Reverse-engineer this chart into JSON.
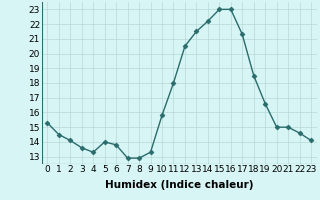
{
  "x": [
    0,
    1,
    2,
    3,
    4,
    5,
    6,
    7,
    8,
    9,
    10,
    11,
    12,
    13,
    14,
    15,
    16,
    17,
    18,
    19,
    20,
    21,
    22,
    23
  ],
  "y": [
    15.3,
    14.5,
    14.1,
    13.6,
    13.3,
    14.0,
    13.8,
    12.9,
    12.9,
    13.3,
    15.8,
    18.0,
    20.5,
    21.5,
    22.2,
    23.0,
    23.0,
    21.3,
    18.5,
    16.6,
    15.0,
    15.0,
    14.6,
    14.1
  ],
  "xlabel": "Humidex (Indice chaleur)",
  "xlim": [
    -0.5,
    23.5
  ],
  "ylim": [
    12.5,
    23.5
  ],
  "yticks": [
    13,
    14,
    15,
    16,
    17,
    18,
    19,
    20,
    21,
    22,
    23
  ],
  "xticks": [
    0,
    1,
    2,
    3,
    4,
    5,
    6,
    7,
    8,
    9,
    10,
    11,
    12,
    13,
    14,
    15,
    16,
    17,
    18,
    19,
    20,
    21,
    22,
    23
  ],
  "line_color": "#2a6b6b",
  "marker": "D",
  "marker_size": 2.5,
  "bg_color": "#d8f5f5",
  "grid_color": "#b8d8d8",
  "xlabel_fontsize": 7.5,
  "tick_fontsize": 6.5,
  "line_width": 1.0
}
